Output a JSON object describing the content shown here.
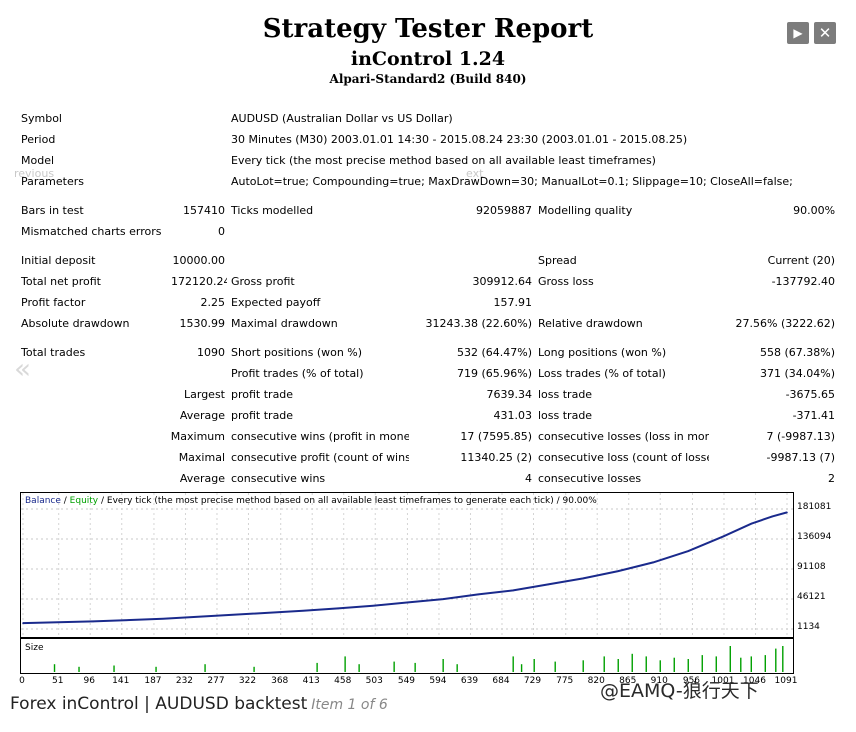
{
  "header": {
    "title": "Strategy Tester Report",
    "subtitle": "inControl 1.24",
    "build": "Alpari-Standard2 (Build 840)"
  },
  "lightbox": {
    "next_icon": "▶",
    "close_icon": "✕",
    "prev_text": "revious",
    "next_text": "ext",
    "prev_arrow": "«"
  },
  "info": {
    "symbol_label": "Symbol",
    "symbol": "AUDUSD (Australian Dollar vs US Dollar)",
    "period_label": "Period",
    "period": "30 Minutes (M30) 2003.01.01 14:30 - 2015.08.24 23:30 (2003.01.01 - 2015.08.25)",
    "model_label": "Model",
    "model": "Every tick (the most precise method based on all available least timeframes)",
    "parameters_label": "Parameters",
    "parameters": "AutoLot=true; Compounding=true; MaxDrawDown=30; ManualLot=0.1; Slippage=10; CloseAll=false;"
  },
  "stats": {
    "bars_label": "Bars in test",
    "bars": "157410",
    "ticks_label": "Ticks modelled",
    "ticks": "92059887",
    "quality_label": "Modelling quality",
    "quality": "90.00%",
    "mismatch_label": "Mismatched charts errors",
    "mismatch": "0",
    "deposit_label": "Initial deposit",
    "deposit": "10000.00",
    "spread_label": "Spread",
    "spread": "Current (20)",
    "netprofit_label": "Total net profit",
    "netprofit": "172120.24",
    "grossprofit_label": "Gross profit",
    "grossprofit": "309912.64",
    "grossloss_label": "Gross loss",
    "grossloss": "-137792.40",
    "pf_label": "Profit factor",
    "pf": "2.25",
    "payoff_label": "Expected payoff",
    "payoff": "157.91",
    "absdd_label": "Absolute drawdown",
    "absdd": "1530.99",
    "maxdd_label": "Maximal drawdown",
    "maxdd": "31243.38 (22.60%)",
    "reldd_label": "Relative drawdown",
    "reldd": "27.56% (3222.62)",
    "trades_label": "Total trades",
    "trades": "1090",
    "short_label": "Short positions (won %)",
    "short": "532 (64.47%)",
    "long_label": "Long positions (won %)",
    "long": "558 (67.38%)",
    "profit_trades_label": "Profit trades (% of total)",
    "profit_trades": "719 (65.96%)",
    "loss_trades_label": "Loss trades (% of total)",
    "loss_trades": "371 (34.04%)",
    "largest_label": "Largest",
    "average_label": "Average",
    "maximum_label": "Maximum",
    "maximal_label": "Maximal",
    "profit_trade_label": "profit trade",
    "loss_trade_label": "loss trade",
    "largest_profit": "7639.34",
    "largest_loss": "-3675.65",
    "avg_profit": "431.03",
    "avg_loss": "-371.41",
    "cons_wins_money_label": "consecutive wins (profit in money)",
    "cons_wins_money": "17 (7595.85)",
    "cons_losses_money_label": "consecutive losses (loss in money)",
    "cons_losses_money": "7 (-9987.13)",
    "cons_profit_count_label": "consecutive profit (count of wins)",
    "cons_profit_count": "11340.25 (2)",
    "cons_loss_count_label": "consecutive loss (count of losses)",
    "cons_loss_count": "-9987.13 (7)",
    "cons_wins_label": "consecutive wins",
    "cons_wins": "4",
    "cons_losses_label": "consecutive losses",
    "cons_losses": "2"
  },
  "chart_header": {
    "balance": "Balance",
    "sep1": " / ",
    "equity": "Equity",
    "rest": " / Every tick (the most precise method based on all available least timeframes to generate each tick) / 90.00%"
  },
  "size_label": "Size",
  "colors": {
    "balance": "#1a2a8c",
    "equity": "#00a000",
    "size_bars": "#00a000"
  },
  "chart_data": {
    "type": "line",
    "y_ticks": [
      "181081",
      "136094",
      "91108",
      "46121",
      "1134"
    ],
    "ylim": [
      1134,
      181081
    ],
    "x_ticks": [
      "0",
      "51",
      "96",
      "141",
      "187",
      "232",
      "277",
      "322",
      "368",
      "413",
      "458",
      "503",
      "549",
      "594",
      "639",
      "684",
      "729",
      "775",
      "820",
      "865",
      "910",
      "956",
      "1001",
      "1046",
      "1091"
    ],
    "xlim": [
      0,
      1091
    ],
    "series": [
      {
        "name": "Balance",
        "x": [
          0,
          100,
          200,
          300,
          400,
          450,
          500,
          550,
          600,
          650,
          700,
          750,
          800,
          850,
          900,
          950,
          1000,
          1040,
          1070,
          1091
        ],
        "y": [
          10000,
          12500,
          16500,
          22500,
          28500,
          32000,
          36000,
          41000,
          46000,
          53000,
          59000,
          68000,
          77000,
          88000,
          101000,
          118000,
          140000,
          159000,
          170000,
          176000
        ]
      }
    ],
    "size_bars": [
      {
        "x": 45,
        "v": 0.3
      },
      {
        "x": 80,
        "v": 0.2
      },
      {
        "x": 130,
        "v": 0.25
      },
      {
        "x": 190,
        "v": 0.2
      },
      {
        "x": 260,
        "v": 0.3
      },
      {
        "x": 330,
        "v": 0.2
      },
      {
        "x": 420,
        "v": 0.35
      },
      {
        "x": 460,
        "v": 0.6
      },
      {
        "x": 480,
        "v": 0.3
      },
      {
        "x": 530,
        "v": 0.4
      },
      {
        "x": 560,
        "v": 0.35
      },
      {
        "x": 600,
        "v": 0.5
      },
      {
        "x": 620,
        "v": 0.3
      },
      {
        "x": 700,
        "v": 0.6
      },
      {
        "x": 712,
        "v": 0.3
      },
      {
        "x": 730,
        "v": 0.5
      },
      {
        "x": 760,
        "v": 0.4
      },
      {
        "x": 800,
        "v": 0.45
      },
      {
        "x": 830,
        "v": 0.6
      },
      {
        "x": 850,
        "v": 0.5
      },
      {
        "x": 870,
        "v": 0.7
      },
      {
        "x": 890,
        "v": 0.6
      },
      {
        "x": 910,
        "v": 0.45
      },
      {
        "x": 930,
        "v": 0.55
      },
      {
        "x": 950,
        "v": 0.5
      },
      {
        "x": 970,
        "v": 0.65
      },
      {
        "x": 990,
        "v": 0.6
      },
      {
        "x": 1010,
        "v": 1.0
      },
      {
        "x": 1025,
        "v": 0.55
      },
      {
        "x": 1040,
        "v": 0.6
      },
      {
        "x": 1060,
        "v": 0.65
      },
      {
        "x": 1075,
        "v": 0.9
      },
      {
        "x": 1085,
        "v": 1.0
      }
    ]
  },
  "footer": {
    "caption": "Forex inControl | AUDUSD backtest",
    "item": "Item 1 of 6",
    "watermark": "@EAMQ-狼行天下"
  }
}
